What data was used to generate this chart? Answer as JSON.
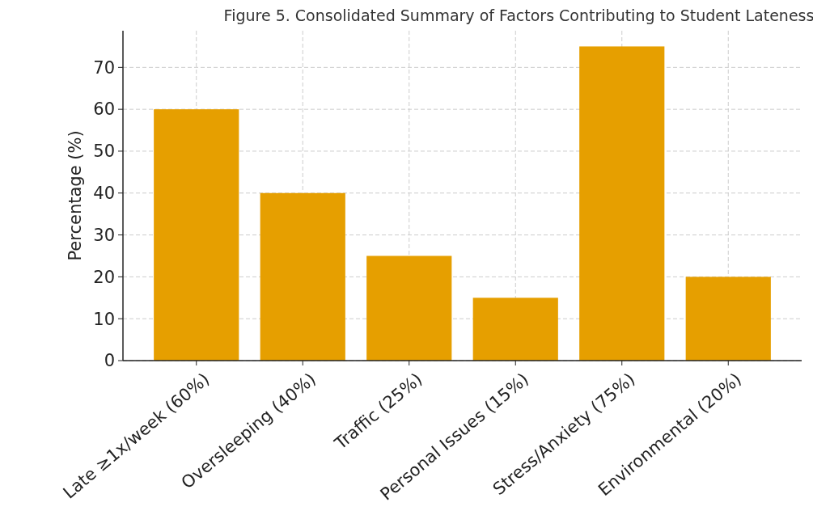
{
  "chart_data": {
    "type": "bar",
    "title": "Figure 5. Consolidated Summary of Factors Contributing to Student Lateness",
    "ylabel": "Percentage (%)",
    "categories": [
      "Late ≥1x/week (60%)",
      "Oversleeping (40%)",
      "Traffic (25%)",
      "Personal Issues (15%)",
      "Stress/Anxiety (75%)",
      "Environmental (20%)"
    ],
    "values": [
      60,
      40,
      25,
      15,
      75,
      20
    ],
    "color": "#e69f00",
    "ylim": [
      0,
      78.75
    ],
    "yticks": [
      0,
      10,
      20,
      30,
      40,
      50,
      60,
      70
    ],
    "grid": true
  }
}
